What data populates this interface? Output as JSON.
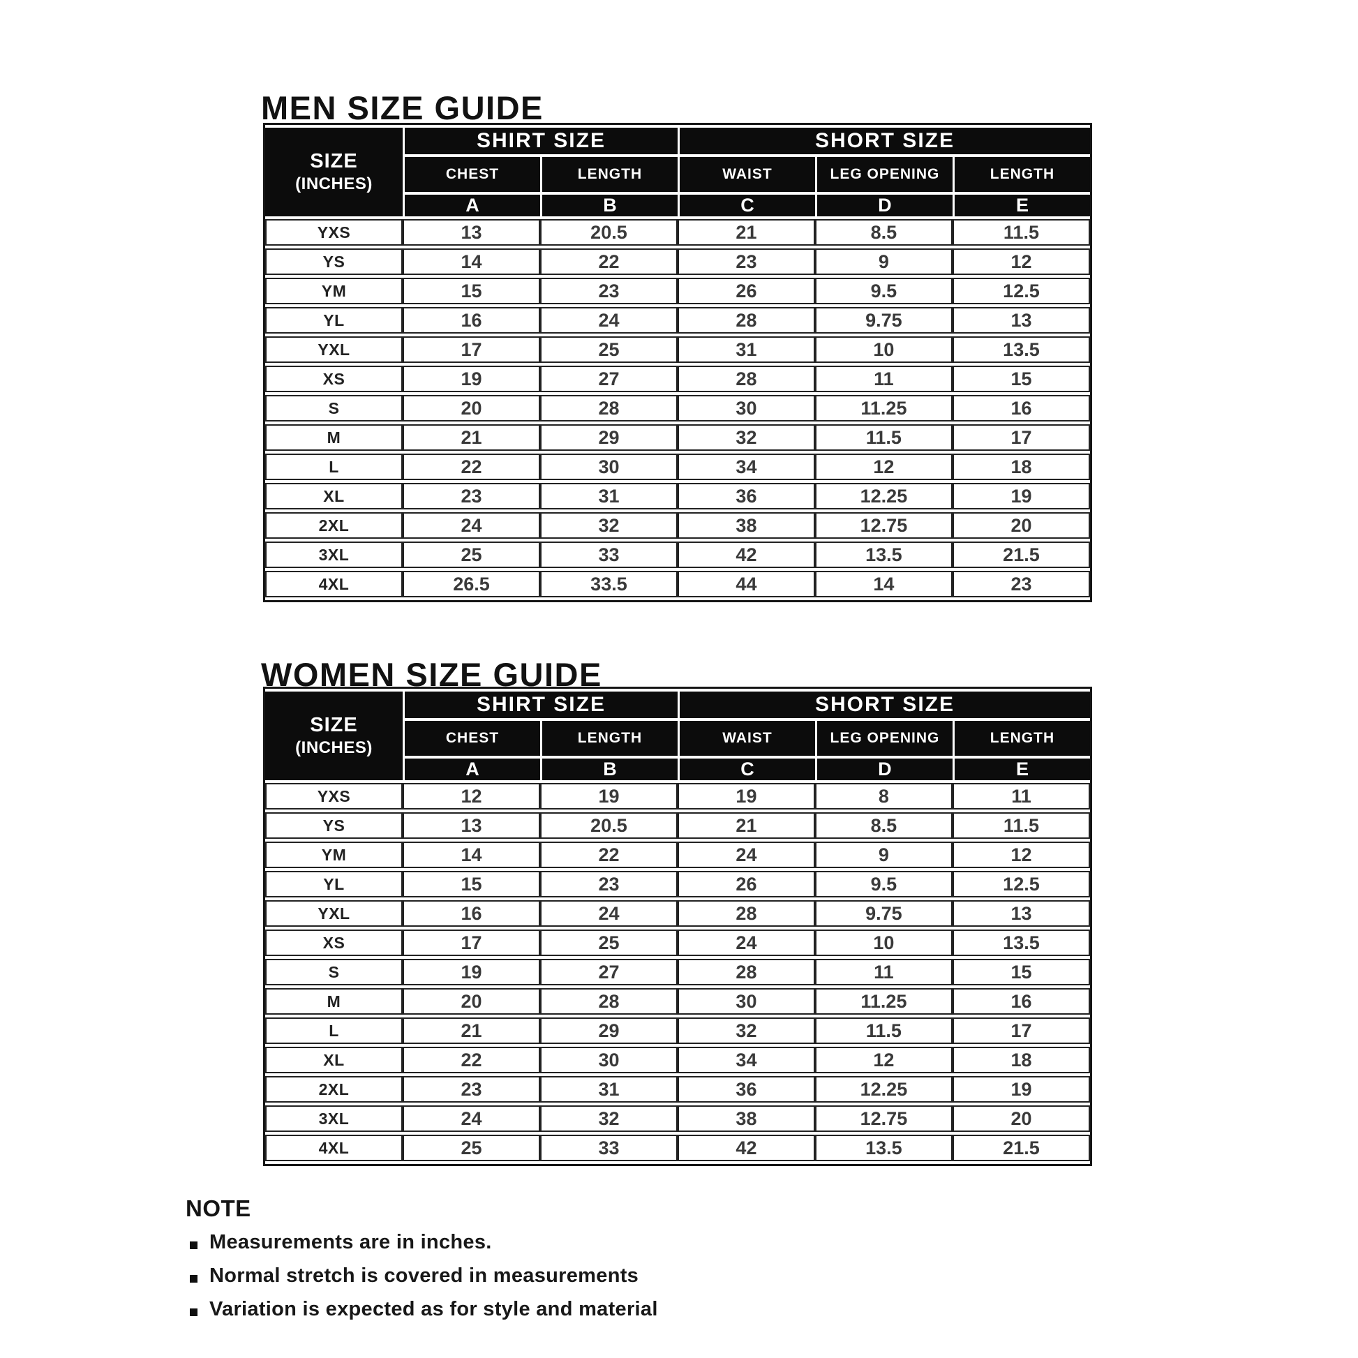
{
  "men_guide": {
    "title": "MEN SIZE GUIDE",
    "header": {
      "corner_top": "SIZE",
      "corner_bottom": "(INCHES)",
      "shirt_group": "SHIRT SIZE",
      "short_group": "SHORT SIZE",
      "columns": [
        "CHEST",
        "LENGTH",
        "WAIST",
        "LEG OPENING",
        "LENGTH"
      ],
      "letters": [
        "A",
        "B",
        "C",
        "D",
        "E"
      ]
    },
    "rows": [
      {
        "size": "YXS",
        "chest": "13",
        "shirt_length": "20.5",
        "waist": "21",
        "leg_opening": "8.5",
        "short_length": "11.5"
      },
      {
        "size": "YS",
        "chest": "14",
        "shirt_length": "22",
        "waist": "23",
        "leg_opening": "9",
        "short_length": "12"
      },
      {
        "size": "YM",
        "chest": "15",
        "shirt_length": "23",
        "waist": "26",
        "leg_opening": "9.5",
        "short_length": "12.5"
      },
      {
        "size": "YL",
        "chest": "16",
        "shirt_length": "24",
        "waist": "28",
        "leg_opening": "9.75",
        "short_length": "13"
      },
      {
        "size": "YXL",
        "chest": "17",
        "shirt_length": "25",
        "waist": "31",
        "leg_opening": "10",
        "short_length": "13.5"
      },
      {
        "size": "XS",
        "chest": "19",
        "shirt_length": "27",
        "waist": "28",
        "leg_opening": "11",
        "short_length": "15"
      },
      {
        "size": "S",
        "chest": "20",
        "shirt_length": "28",
        "waist": "30",
        "leg_opening": "11.25",
        "short_length": "16"
      },
      {
        "size": "M",
        "chest": "21",
        "shirt_length": "29",
        "waist": "32",
        "leg_opening": "11.5",
        "short_length": "17"
      },
      {
        "size": "L",
        "chest": "22",
        "shirt_length": "30",
        "waist": "34",
        "leg_opening": "12",
        "short_length": "18"
      },
      {
        "size": "XL",
        "chest": "23",
        "shirt_length": "31",
        "waist": "36",
        "leg_opening": "12.25",
        "short_length": "19"
      },
      {
        "size": "2XL",
        "chest": "24",
        "shirt_length": "32",
        "waist": "38",
        "leg_opening": "12.75",
        "short_length": "20"
      },
      {
        "size": "3XL",
        "chest": "25",
        "shirt_length": "33",
        "waist": "42",
        "leg_opening": "13.5",
        "short_length": "21.5"
      },
      {
        "size": "4XL",
        "chest": "26.5",
        "shirt_length": "33.5",
        "waist": "44",
        "leg_opening": "14",
        "short_length": "23"
      }
    ]
  },
  "women_guide": {
    "title": "WOMEN SIZE GUIDE",
    "header": {
      "corner_top": "SIZE",
      "corner_bottom": "(INCHES)",
      "shirt_group": "SHIRT SIZE",
      "short_group": "SHORT SIZE",
      "columns": [
        "CHEST",
        "LENGTH",
        "WAIST",
        "LEG OPENING",
        "LENGTH"
      ],
      "letters": [
        "A",
        "B",
        "C",
        "D",
        "E"
      ]
    },
    "rows": [
      {
        "size": "YXS",
        "chest": "12",
        "shirt_length": "19",
        "waist": "19",
        "leg_opening": "8",
        "short_length": "11"
      },
      {
        "size": "YS",
        "chest": "13",
        "shirt_length": "20.5",
        "waist": "21",
        "leg_opening": "8.5",
        "short_length": "11.5"
      },
      {
        "size": "YM",
        "chest": "14",
        "shirt_length": "22",
        "waist": "24",
        "leg_opening": "9",
        "short_length": "12"
      },
      {
        "size": "YL",
        "chest": "15",
        "shirt_length": "23",
        "waist": "26",
        "leg_opening": "9.5",
        "short_length": "12.5"
      },
      {
        "size": "YXL",
        "chest": "16",
        "shirt_length": "24",
        "waist": "28",
        "leg_opening": "9.75",
        "short_length": "13"
      },
      {
        "size": "XS",
        "chest": "17",
        "shirt_length": "25",
        "waist": "24",
        "leg_opening": "10",
        "short_length": "13.5"
      },
      {
        "size": "S",
        "chest": "19",
        "shirt_length": "27",
        "waist": "28",
        "leg_opening": "11",
        "short_length": "15"
      },
      {
        "size": "M",
        "chest": "20",
        "shirt_length": "28",
        "waist": "30",
        "leg_opening": "11.25",
        "short_length": "16"
      },
      {
        "size": "L",
        "chest": "21",
        "shirt_length": "29",
        "waist": "32",
        "leg_opening": "11.5",
        "short_length": "17"
      },
      {
        "size": "XL",
        "chest": "22",
        "shirt_length": "30",
        "waist": "34",
        "leg_opening": "12",
        "short_length": "18"
      },
      {
        "size": "2XL",
        "chest": "23",
        "shirt_length": "31",
        "waist": "36",
        "leg_opening": "12.25",
        "short_length": "19"
      },
      {
        "size": "3XL",
        "chest": "24",
        "shirt_length": "32",
        "waist": "38",
        "leg_opening": "12.75",
        "short_length": "20"
      },
      {
        "size": "4XL",
        "chest": "25",
        "shirt_length": "33",
        "waist": "42",
        "leg_opening": "13.5",
        "short_length": "21.5"
      }
    ]
  },
  "note": {
    "title": "NOTE",
    "bullets": [
      "Measurements are in inches.",
      "Normal stretch is covered in measurements",
      "Variation is expected as for style and material"
    ]
  },
  "colors": {
    "header_bg": "#0c0c0c",
    "header_text": "#ffffff",
    "body_text": "#3a3a3a",
    "page_bg": "#ffffff"
  }
}
